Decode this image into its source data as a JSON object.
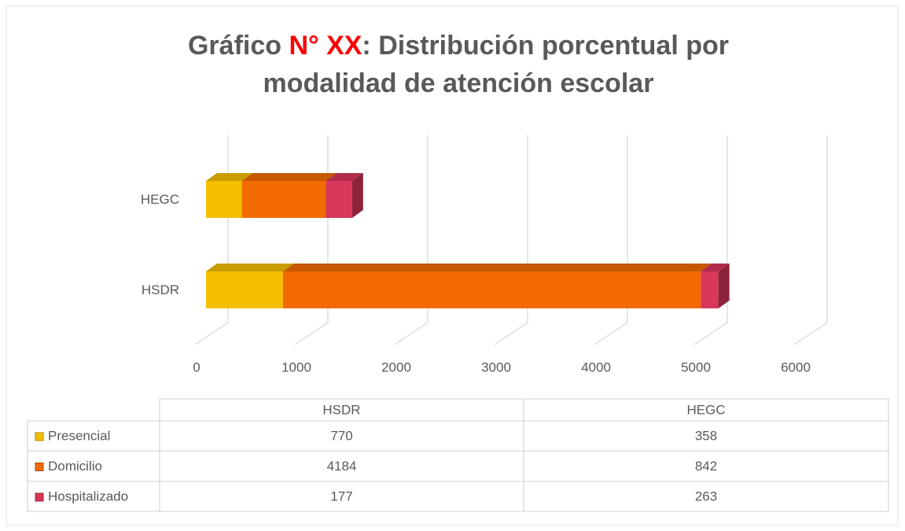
{
  "chart_data": {
    "type": "bar3d_stacked_horizontal",
    "title": [
      {
        "text": "Gráfico ",
        "color": "#595959"
      },
      {
        "text": "N° XX",
        "color": "#ff0000"
      },
      {
        "text": ": Distribución porcentual por",
        "color": "#595959"
      },
      {
        "text": "modalidad de atención escolar",
        "color": "#595959"
      }
    ],
    "categories": [
      "HSDR",
      "HEGC"
    ],
    "series": [
      {
        "name": "Presencial",
        "color": "#f5bf00",
        "values": [
          770,
          358
        ]
      },
      {
        "name": "Domicilio",
        "color": "#f26b00",
        "values": [
          4184,
          842
        ]
      },
      {
        "name": "Hospitalizado",
        "color": "#d8365a",
        "values": [
          177,
          263
        ]
      }
    ],
    "xlim": [
      0,
      6000
    ],
    "xticks": [
      0,
      1000,
      2000,
      3000,
      4000,
      5000,
      6000
    ],
    "grid": true,
    "data_table": true
  }
}
